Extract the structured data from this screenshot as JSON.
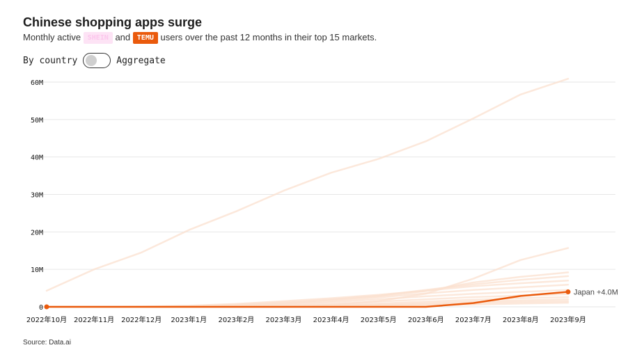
{
  "header": {
    "title": "Chinese shopping apps surge",
    "subtitle_prefix": "Monthly active",
    "chip_shein": "SHEIN",
    "subtitle_and": "and",
    "chip_temu": "TEMU",
    "subtitle_suffix": "users over the past 12 months in their top 15 markets."
  },
  "toggle": {
    "left_label": "By country",
    "right_label": "Aggregate",
    "state": "off"
  },
  "source": "Source: Data.ai",
  "colors": {
    "temu": "#ea5a0c",
    "shein_bg": "#fde3f5",
    "shein_text": "#fbc6ec",
    "faint_line": "#fbe0cf",
    "grid": "#e6e6e6"
  },
  "chart_data": {
    "type": "line",
    "x": [
      "2022年10月",
      "2022年11月",
      "2022年12月",
      "2023年1月",
      "2023年2月",
      "2023年3月",
      "2023年4月",
      "2023年5月",
      "2023年6月",
      "2023年7月",
      "2023年8月",
      "2023年9月"
    ],
    "ylim": [
      0,
      60
    ],
    "y_ticks": [
      0,
      10,
      20,
      30,
      40,
      50,
      60
    ],
    "y_tick_labels": [
      "0",
      "10M",
      "20M",
      "30M",
      "40M",
      "50M",
      "60M"
    ],
    "grid": true,
    "background_series": [
      {
        "values": [
          4.3,
          10.0,
          14.5,
          20.5,
          25.5,
          31.0,
          35.8,
          39.5,
          44.2,
          50.3,
          56.7,
          60.9
        ]
      },
      {
        "values": [
          0.0,
          0.0,
          0.0,
          0.05,
          0.1,
          0.2,
          0.5,
          1.5,
          3.5,
          7.5,
          12.5,
          15.7
        ]
      },
      {
        "values": [
          0.0,
          0.0,
          0.0,
          0.1,
          0.5,
          1.0,
          1.8,
          2.8,
          4.2,
          6.5,
          8.0,
          9.2
        ]
      },
      {
        "values": [
          0.0,
          0.0,
          0.0,
          0.2,
          0.6,
          1.2,
          2.0,
          3.0,
          4.5,
          6.0,
          7.2,
          8.2
        ]
      },
      {
        "values": [
          0.0,
          0.0,
          0.1,
          0.3,
          0.8,
          1.5,
          2.3,
          3.2,
          4.3,
          5.5,
          6.3,
          7.0
        ]
      },
      {
        "values": [
          0.0,
          0.0,
          0.0,
          0.1,
          0.3,
          0.8,
          1.5,
          2.5,
          3.6,
          4.5,
          5.2,
          5.9
        ]
      },
      {
        "values": [
          0.0,
          0.0,
          0.0,
          0.0,
          0.2,
          0.6,
          1.2,
          2.0,
          2.8,
          3.5,
          4.0,
          4.5
        ]
      },
      {
        "values": [
          0.0,
          0.0,
          0.0,
          0.0,
          0.1,
          0.3,
          0.8,
          1.4,
          2.0,
          2.6,
          3.0,
          3.4
        ]
      },
      {
        "values": [
          0.0,
          0.0,
          0.0,
          0.0,
          0.0,
          0.2,
          0.5,
          0.9,
          1.4,
          1.9,
          2.3,
          2.6
        ]
      },
      {
        "values": [
          0.0,
          0.0,
          0.0,
          0.0,
          0.0,
          0.1,
          0.3,
          0.6,
          1.0,
          1.4,
          1.7,
          2.0
        ]
      },
      {
        "values": [
          0.0,
          0.0,
          0.0,
          0.0,
          0.0,
          0.0,
          0.2,
          0.4,
          0.7,
          1.0,
          1.3,
          1.5
        ]
      },
      {
        "values": [
          0.0,
          0.0,
          0.0,
          0.0,
          0.0,
          0.0,
          0.1,
          0.2,
          0.4,
          0.6,
          0.9,
          1.1
        ]
      }
    ],
    "highlight_series": {
      "values": [
        0.0,
        0.0,
        0.0,
        0.0,
        0.0,
        0.0,
        0.0,
        0.0,
        0.0,
        1.0,
        2.9,
        4.0
      ],
      "end_label": "Japan +4.0M"
    }
  }
}
